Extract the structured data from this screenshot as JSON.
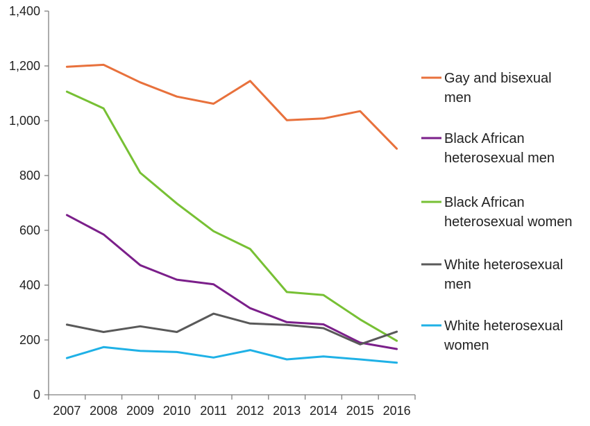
{
  "chart_data": {
    "type": "line",
    "title": "",
    "xlabel": "",
    "ylabel": "",
    "categories": [
      "2007",
      "2008",
      "2009",
      "2010",
      "2011",
      "2012",
      "2013",
      "2014",
      "2015",
      "2016"
    ],
    "ylim": [
      0,
      1400
    ],
    "yticks": [
      0,
      200,
      400,
      600,
      800,
      1000,
      1200,
      1400
    ],
    "ytick_labels": [
      "0",
      "200",
      "400",
      "600",
      "800",
      "1,000",
      "1,200",
      "1,400"
    ],
    "grid": false,
    "legend_position": "right",
    "series": [
      {
        "name": "Gay and bisexual men",
        "legend_lines": [
          "Gay and bisexual",
          "men"
        ],
        "color": "#e8713c",
        "values": [
          1197,
          1204,
          1140,
          1088,
          1062,
          1145,
          1002,
          1008,
          1035,
          898
        ]
      },
      {
        "name": "Black African heterosexual men",
        "legend_lines": [
          "Black African",
          "heterosexual men"
        ],
        "color": "#7b1f8a",
        "values": [
          656,
          585,
          473,
          420,
          403,
          316,
          265,
          257,
          190,
          167
        ]
      },
      {
        "name": "Black African heterosexual women",
        "legend_lines": [
          "Black African",
          "heterosexual women"
        ],
        "color": "#77c034",
        "values": [
          1106,
          1045,
          810,
          698,
          597,
          532,
          375,
          364,
          275,
          197
        ]
      },
      {
        "name": "White heterosexual men",
        "legend_lines": [
          "White heterosexual",
          "men"
        ],
        "color": "#595959",
        "values": [
          256,
          229,
          250,
          229,
          296,
          260,
          255,
          243,
          184,
          230
        ]
      },
      {
        "name": "White heterosexual women",
        "legend_lines": [
          "White heterosexual",
          "women"
        ],
        "color": "#1fb1e6",
        "values": [
          134,
          174,
          160,
          156,
          136,
          163,
          129,
          140,
          129,
          117
        ]
      }
    ]
  }
}
